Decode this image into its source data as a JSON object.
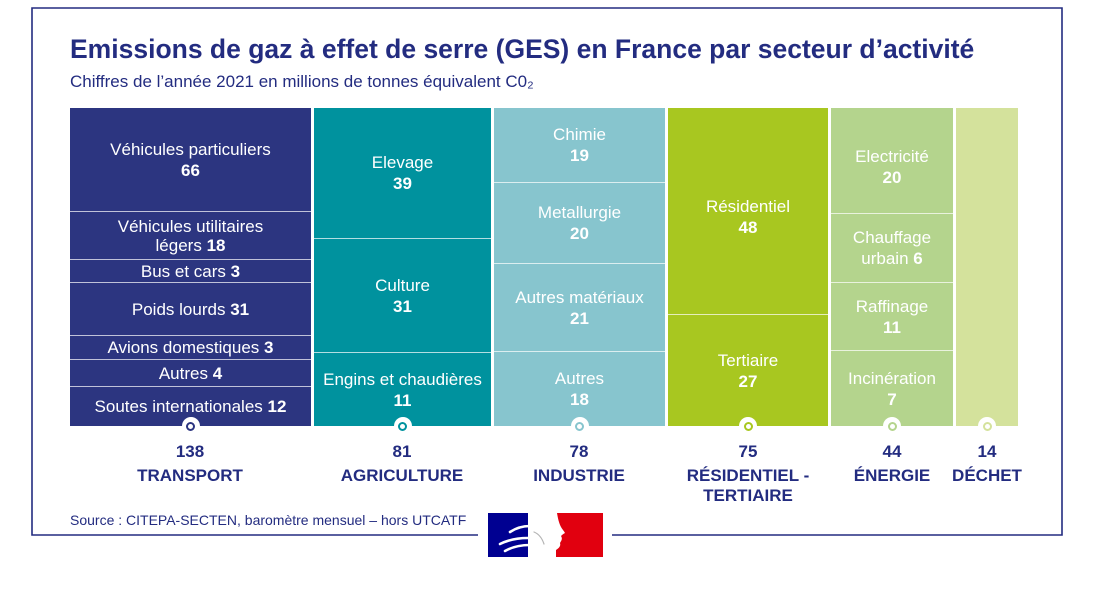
{
  "source": "Source : CITEPA-SECTEN, baromètre mensuel – hors UTCATF",
  "colors": {
    "text": "#232c80",
    "frame": "#232c80",
    "segment_text": "#ffffff",
    "logo_blue": "#000091",
    "logo_red": "#e1000f"
  },
  "logo": {
    "icon": "marianne-logo"
  },
  "chart_data": {
    "type": "bar",
    "stacked": true,
    "grid": false,
    "title": "Emissions de gaz à effet de serre (GES) en France par secteur d’activité",
    "subtitle": "Chiffres de l’année 2021 en millions de tonnes équivalent C0₂",
    "sectors": [
      {
        "name": "TRANSPORT",
        "total": 138,
        "color": "#2c3580",
        "segments": [
          {
            "label": "Véhicules particuliers",
            "value": 66
          },
          {
            "label": "Véhicules utilitaires légers",
            "value": 18
          },
          {
            "label": "Bus et cars",
            "value": 3
          },
          {
            "label": "Poids lourds",
            "value": 31
          },
          {
            "label": "Avions domestiques",
            "value": 3
          },
          {
            "label": "Autres",
            "value": 4
          },
          {
            "label": "Soutes internationales",
            "value": 12
          }
        ]
      },
      {
        "name": "AGRICULTURE",
        "total": 81,
        "color": "#00929e",
        "segments": [
          {
            "label": "Elevage",
            "value": 39
          },
          {
            "label": "Culture",
            "value": 31
          },
          {
            "label": "Engins et chaudières",
            "value": 11
          }
        ]
      },
      {
        "name": "INDUSTRIE",
        "total": 78,
        "color": "#87c5ce",
        "segments": [
          {
            "label": "Chimie",
            "value": 19
          },
          {
            "label": "Metallurgie",
            "value": 20
          },
          {
            "label": "Autres matériaux",
            "value": 21
          },
          {
            "label": "Autres",
            "value": 18
          }
        ]
      },
      {
        "name": "RÉSIDENTIEL - TERTIAIRE",
        "total": 75,
        "color": "#a8c720",
        "segments": [
          {
            "label": "Résidentiel",
            "value": 48
          },
          {
            "label": "Tertiaire",
            "value": 27
          }
        ]
      },
      {
        "name": "ÉNERGIE",
        "total": 44,
        "color": "#b4d48d",
        "segments": [
          {
            "label": "Electricité",
            "value": 20
          },
          {
            "label": "Chauffage urbain",
            "value": 6
          },
          {
            "label": "Raffinage",
            "value": 11
          },
          {
            "label": "Incinération",
            "value": 7
          }
        ]
      },
      {
        "name": "DÉCHET",
        "total": 14,
        "color": "#d4e29c",
        "segments": []
      }
    ]
  }
}
